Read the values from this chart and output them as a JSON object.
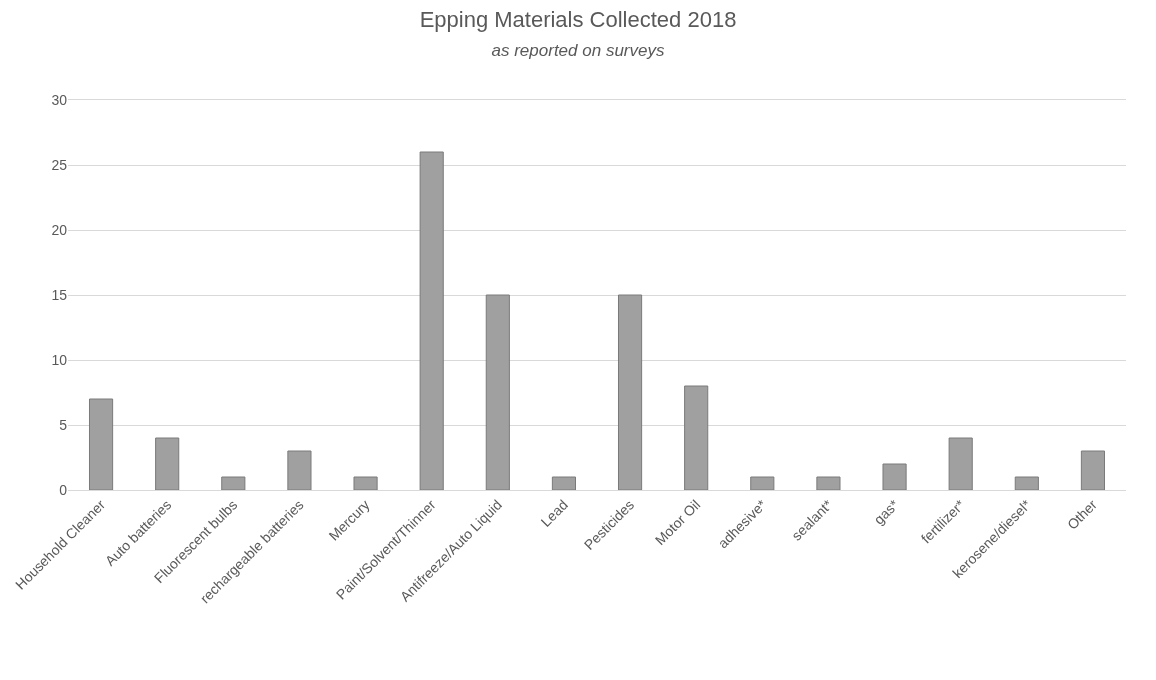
{
  "chart_data": {
    "type": "bar",
    "title": "Epping Materials Collected 2018",
    "subtitle": "as reported on surveys",
    "categories": [
      "Household Cleaner",
      "Auto batteries",
      "Fluorescent bulbs",
      "rechargeable batteries",
      "Mercury",
      "Paint/Solvent/Thinner",
      "Antifreeze/Auto Liquid",
      "Lead",
      "Pesticides",
      "Motor Oil",
      "adhesive*",
      "sealant*",
      "gas*",
      "fertilizer*",
      "kerosene/diesel*",
      "Other"
    ],
    "values": [
      7,
      4,
      1,
      3,
      1,
      26,
      15,
      1,
      15,
      8,
      1,
      1,
      2,
      4,
      1,
      3
    ],
    "color": "#a0a0a0",
    "ylim": [
      0,
      30
    ],
    "yticks": [
      0,
      5,
      10,
      15,
      20,
      25,
      30
    ],
    "grid": "y"
  }
}
